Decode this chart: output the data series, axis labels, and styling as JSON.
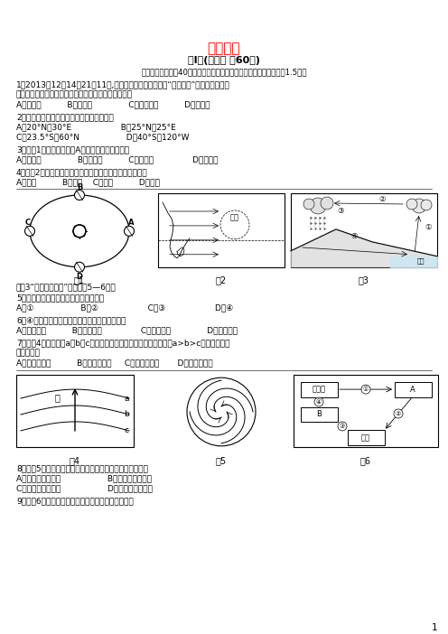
{
  "title": "高一地理",
  "section1_title": "第Ⅰ卷(选择题 共60分)",
  "instruction": "选择题（本大题入40小题，每一小题只有一个选项符合题意，每小题1.5分）",
  "q1a": "1．2013年12月14日21点11分,承载着中国探月新梦想的“嫦娥三号”月球探测器在月",
  "q1b": "球表面成功软着陆，下列天体系统中，不包含月球的是",
  "q1c": "A．总星系          B．銀河系              C．河外星系          D．太阳系",
  "q2a": "2．下列各地中，每年两次受到太阳直射的是",
  "q2b": "A．20°N，30°E                   B．25°N，25°E",
  "q2c": "C．23.5°S，60°N                  D．40°S，120°W",
  "q3a": "3．读图1，当地球公转到A点时，此时为北半球的",
  "q3b": "A．冬至日              B．春分日          C．夏至日               D．秋分日",
  "q4a": "4．读图2，若此图表示亚欧大陆东部季风环流，则此季节是",
  "q4b": "A．春季          B．夏季    C．秋季          D．冬季",
  "sec5_intro": "读图3“水循环示意图”，完成题5—6题。",
  "q5a": "5．受人类活动影响最大的水循环环节是",
  "q5b": "A．①                  B．②                   C．③                   D．④",
  "q6a": "6．④环节型途河流入海口三角洲地貌，其作用是",
  "q6b": "A．流水侵蚀          B．流水沉积               C．海浪侵蚀              D．风力沉积",
  "q7a": "7．读图4，如果图中a、b、c为甲海域表层海水等温线，且在数値上a>b>c，则甲海域流",
  "q7b": "经的洋流为",
  "q7c": "A．北半球暖流          B．北半球寒流     C．南半球暖流       D．南半球寒流",
  "q8a": "8．读图5，从该天气系统所处的半球和气压分布看，它属于",
  "q8b": "A．北半球，高气压                  B．北半球，低气压",
  "q8c": "C．南半球，高气压                  D．南半球，低气压",
  "q9a": "9．读图6，图中关于字母代表的岩石，表述正确的是",
  "fig1_label": "图1",
  "fig2_label": "图2",
  "fig3_label": "图3",
  "fig4_label": "图4",
  "fig5_label": "图5",
  "fig6_label": "图6",
  "page_num": "1",
  "title_color": "#ff0000",
  "text_color": "#000000",
  "bg_color": "#ffffff"
}
